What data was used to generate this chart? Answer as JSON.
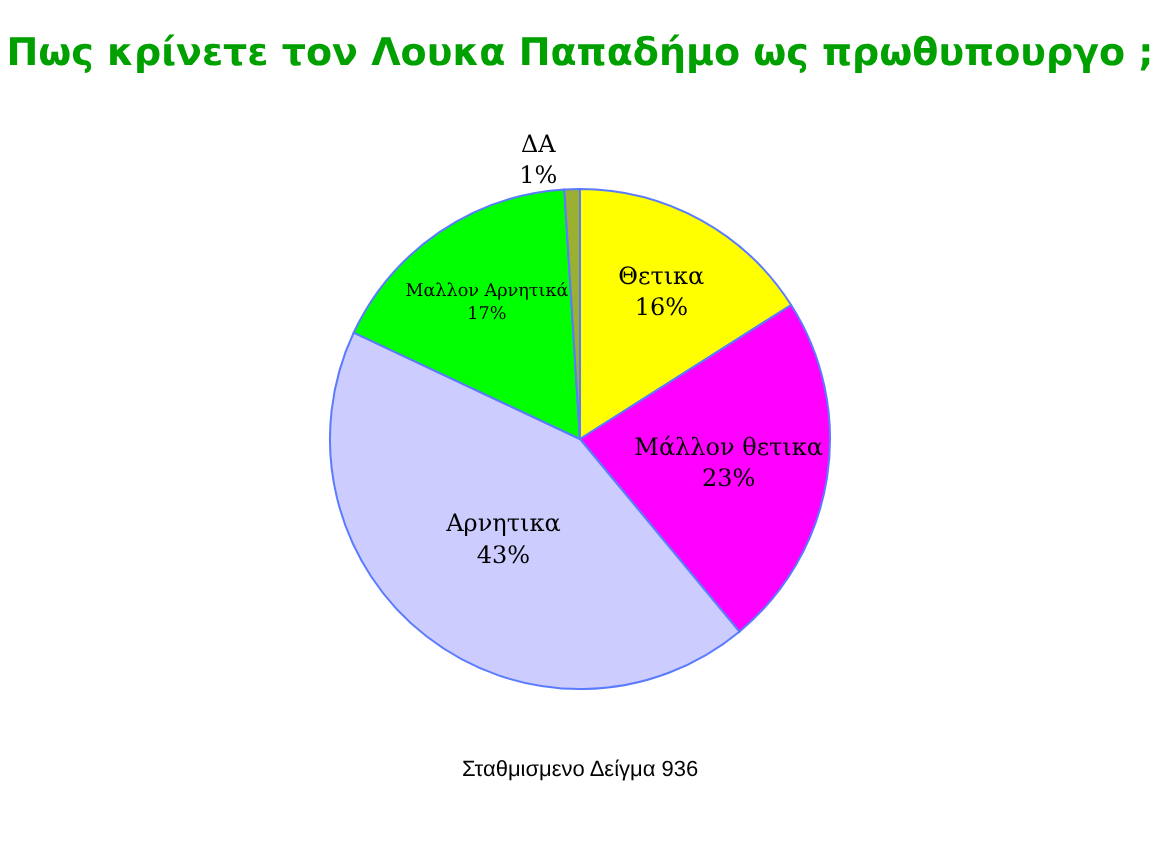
{
  "chart_data": {
    "type": "pie",
    "title": "Πως κρίνετε τον Λουκα Παπαδήμο ως πρωθυπουργο ;",
    "categories": [
      "Θετικα",
      "Μάλλον θετικα",
      "Αρνητικα",
      "Μαλλον Αρνητικά",
      "ΔΑ"
    ],
    "values": [
      16,
      23,
      43,
      17,
      1
    ],
    "colors": [
      "#ffff00",
      "#ff00ff",
      "#ccccff",
      "#00ff00",
      "#99b033"
    ],
    "value_labels": [
      "16%",
      "23%",
      "43%",
      "17%",
      "1%"
    ],
    "annotations": [
      "Σταθμισμενο Δείγμα 936"
    ],
    "legend": false
  }
}
